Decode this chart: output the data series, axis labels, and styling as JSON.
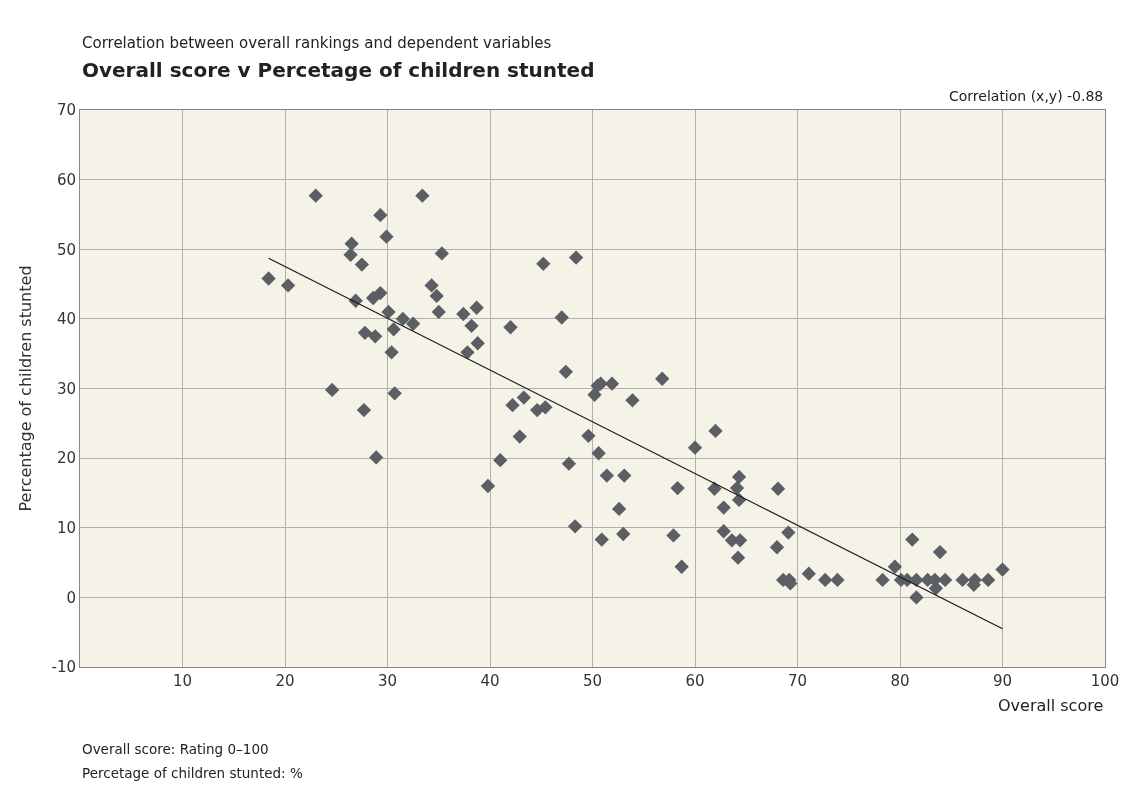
{
  "chart_data": {
    "type": "scatter",
    "subtitle": "Correlation between overall rankings and dependent variables",
    "title": "Overall score v Percetage of children stunted",
    "xlabel": "Overall score",
    "ylabel": "Percentage of children stunted",
    "annotations": [
      "Correlation (x,y) -0.88",
      "Overall score: Rating 0–100",
      "Percetage of children stunted: %"
    ],
    "series": [
      {
        "color": "#5b5e62",
        "marker": "diamond",
        "x": [
          18.4,
          20.3,
          23.0,
          24.6,
          26.5,
          26.4,
          26.9,
          27.5,
          27.8,
          27.7,
          28.6,
          28.8,
          28.9,
          29.3,
          29.3,
          29.9,
          30.1,
          30.4,
          30.6,
          30.7,
          31.5,
          32.5,
          33.4,
          34.3,
          34.8,
          35.0,
          35.3,
          37.4,
          37.8,
          38.2,
          38.7,
          38.8,
          39.8,
          41.0,
          42.0,
          42.2,
          42.9,
          43.3,
          44.6,
          45.4,
          45.2,
          47.0,
          47.4,
          47.7,
          48.3,
          48.4,
          49.6,
          50.2,
          50.5,
          50.8,
          50.6,
          50.9,
          51.4,
          51.9,
          52.6,
          53.1,
          53.0,
          53.9,
          56.8,
          57.9,
          58.3,
          58.7,
          60.0,
          62.0,
          61.9,
          62.8,
          62.8,
          63.6,
          64.4,
          64.2,
          64.1,
          64.3,
          64.3,
          68.1,
          68.0,
          69.1,
          68.6,
          69.2,
          69.3,
          71.1,
          72.7,
          73.9,
          78.3,
          79.5,
          80.1,
          80.7,
          81.2,
          81.6,
          81.6,
          82.7,
          83.4,
          83.5,
          83.9,
          84.4,
          86.1,
          87.2,
          87.3,
          88.6,
          90.0
        ],
        "values": [
          45.8,
          44.8,
          57.7,
          29.8,
          50.8,
          49.2,
          42.6,
          47.8,
          38.0,
          26.9,
          43.0,
          37.5,
          20.1,
          54.9,
          43.7,
          51.8,
          41.0,
          35.2,
          38.5,
          29.3,
          40.0,
          39.3,
          57.7,
          44.8,
          43.3,
          41.0,
          49.4,
          40.7,
          35.2,
          39.0,
          41.6,
          36.5,
          16.0,
          19.7,
          38.8,
          27.6,
          23.1,
          28.7,
          26.9,
          27.3,
          47.9,
          40.2,
          32.4,
          19.2,
          10.2,
          48.8,
          23.2,
          29.1,
          30.4,
          30.7,
          20.7,
          8.3,
          17.5,
          30.7,
          12.7,
          17.5,
          9.1,
          28.3,
          31.4,
          8.9,
          15.7,
          4.4,
          21.5,
          23.9,
          15.6,
          12.9,
          9.5,
          8.2,
          8.2,
          5.7,
          15.7,
          17.3,
          14.0,
          15.6,
          7.2,
          9.3,
          2.5,
          2.5,
          2.0,
          3.4,
          2.5,
          2.5,
          2.5,
          4.4,
          2.5,
          2.5,
          8.3,
          2.5,
          0.0,
          2.5,
          2.5,
          1.3,
          6.5,
          2.5,
          2.5,
          1.8,
          2.5,
          2.5,
          4.0
        ]
      },
      {
        "type": "line",
        "color": "#1a1a1a",
        "marker": "none",
        "line_style": "solid",
        "x": [
          18.4,
          90.0
        ],
        "values": [
          48.7,
          -4.5
        ]
      }
    ],
    "xlim": [
      0,
      100
    ],
    "xticks": [
      10,
      20,
      30,
      40,
      50,
      60,
      70,
      80,
      90,
      100
    ],
    "ylim": [
      -10,
      70
    ],
    "yticks": [
      -10,
      0,
      10,
      20,
      30,
      40,
      50,
      60,
      70
    ],
    "grid": true
  }
}
